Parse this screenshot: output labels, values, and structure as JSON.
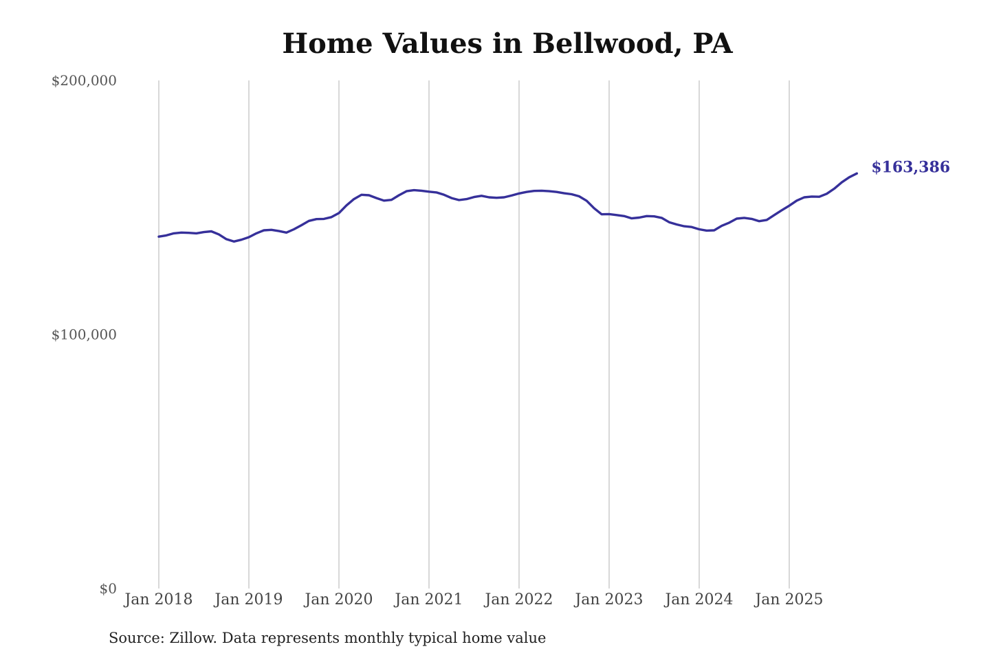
{
  "chart_data": {
    "type": "line",
    "title": "Home Values in Bellwood, PA",
    "xlabel": "",
    "ylabel": "",
    "x_ticks": [
      "Jan 2018",
      "Jan 2019",
      "Jan 2020",
      "Jan 2021",
      "Jan 2022",
      "Jan 2023",
      "Jan 2024",
      "Jan 2025"
    ],
    "y_ticks": [
      {
        "value": 200000,
        "label": "$200,000"
      },
      {
        "value": 100000,
        "label": "$100,000"
      },
      {
        "value": 0,
        "label": "$0"
      }
    ],
    "ylim": [
      0,
      200000
    ],
    "xlim": [
      "2018-01",
      "2025-09"
    ],
    "grid": "vertical lines at each January",
    "series": [
      {
        "color": "#36309a",
        "end_label": "$163,386",
        "points": [
          [
            "2018-01",
            138500
          ],
          [
            "2018-02",
            139000
          ],
          [
            "2018-03",
            139800
          ],
          [
            "2018-04",
            140100
          ],
          [
            "2018-05",
            140000
          ],
          [
            "2018-06",
            139800
          ],
          [
            "2018-07",
            140300
          ],
          [
            "2018-08",
            140600
          ],
          [
            "2018-09",
            139400
          ],
          [
            "2018-10",
            137500
          ],
          [
            "2018-11",
            136600
          ],
          [
            "2018-12",
            137300
          ],
          [
            "2019-01",
            138300
          ],
          [
            "2019-02",
            139800
          ],
          [
            "2019-03",
            141000
          ],
          [
            "2019-04",
            141200
          ],
          [
            "2019-05",
            140700
          ],
          [
            "2019-06",
            140100
          ],
          [
            "2019-07",
            141400
          ],
          [
            "2019-08",
            143000
          ],
          [
            "2019-09",
            144700
          ],
          [
            "2019-10",
            145400
          ],
          [
            "2019-11",
            145500
          ],
          [
            "2019-12",
            146200
          ],
          [
            "2020-01",
            147800
          ],
          [
            "2020-02",
            150800
          ],
          [
            "2020-03",
            153300
          ],
          [
            "2020-04",
            155000
          ],
          [
            "2020-05",
            154800
          ],
          [
            "2020-06",
            153700
          ],
          [
            "2020-07",
            152700
          ],
          [
            "2020-08",
            153000
          ],
          [
            "2020-09",
            154800
          ],
          [
            "2020-10",
            156400
          ],
          [
            "2020-11",
            156800
          ],
          [
            "2020-12",
            156600
          ],
          [
            "2021-01",
            156200
          ],
          [
            "2021-02",
            155900
          ],
          [
            "2021-03",
            155000
          ],
          [
            "2021-04",
            153700
          ],
          [
            "2021-05",
            152900
          ],
          [
            "2021-06",
            153300
          ],
          [
            "2021-07",
            154100
          ],
          [
            "2021-08",
            154600
          ],
          [
            "2021-09",
            154000
          ],
          [
            "2021-10",
            153800
          ],
          [
            "2021-11",
            154000
          ],
          [
            "2021-12",
            154700
          ],
          [
            "2022-01",
            155500
          ],
          [
            "2022-02",
            156100
          ],
          [
            "2022-03",
            156500
          ],
          [
            "2022-04",
            156600
          ],
          [
            "2022-05",
            156400
          ],
          [
            "2022-06",
            156100
          ],
          [
            "2022-07",
            155600
          ],
          [
            "2022-08",
            155200
          ],
          [
            "2022-09",
            154400
          ],
          [
            "2022-10",
            152600
          ],
          [
            "2022-11",
            149700
          ],
          [
            "2022-12",
            147300
          ],
          [
            "2023-01",
            147400
          ],
          [
            "2023-02",
            147000
          ],
          [
            "2023-03",
            146600
          ],
          [
            "2023-04",
            145700
          ],
          [
            "2023-05",
            146000
          ],
          [
            "2023-06",
            146600
          ],
          [
            "2023-07",
            146500
          ],
          [
            "2023-08",
            145900
          ],
          [
            "2023-09",
            144200
          ],
          [
            "2023-10",
            143300
          ],
          [
            "2023-11",
            142600
          ],
          [
            "2023-12",
            142300
          ],
          [
            "2024-01",
            141400
          ],
          [
            "2024-02",
            140900
          ],
          [
            "2024-03",
            141000
          ],
          [
            "2024-04",
            142800
          ],
          [
            "2024-05",
            144000
          ],
          [
            "2024-06",
            145600
          ],
          [
            "2024-07",
            145900
          ],
          [
            "2024-08",
            145500
          ],
          [
            "2024-09",
            144600
          ],
          [
            "2024-10",
            145100
          ],
          [
            "2024-11",
            147000
          ],
          [
            "2024-12",
            148900
          ],
          [
            "2025-01",
            150700
          ],
          [
            "2025-02",
            152700
          ],
          [
            "2025-03",
            154000
          ],
          [
            "2025-04",
            154300
          ],
          [
            "2025-05",
            154200
          ],
          [
            "2025-06",
            155400
          ],
          [
            "2025-07",
            157400
          ],
          [
            "2025-08",
            159900
          ],
          [
            "2025-09",
            161900
          ],
          [
            "2025-10",
            163386
          ]
        ]
      }
    ]
  },
  "source_note": "Source: Zillow. Data represents monthly typical home value"
}
